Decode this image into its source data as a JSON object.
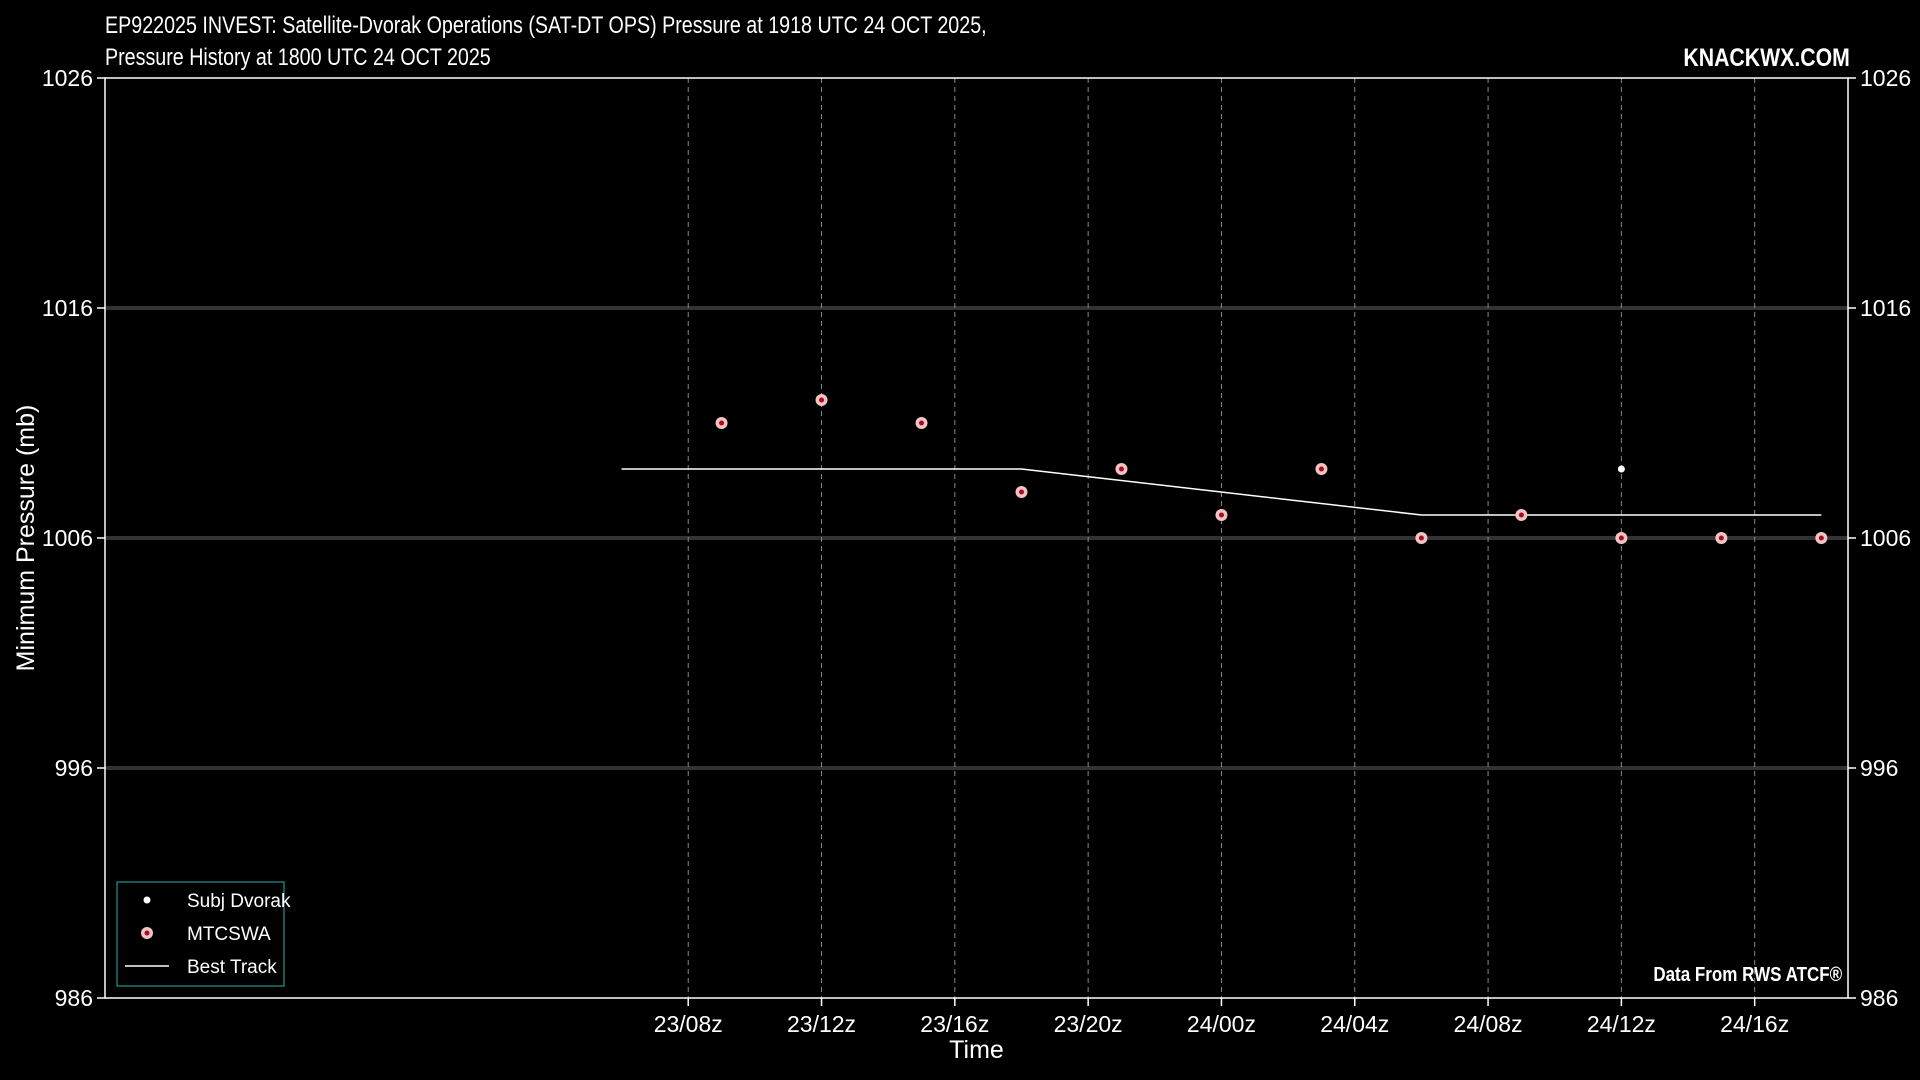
{
  "header": {
    "title_line1": "EP922025 INVEST: Satellite-Dvorak Operations (SAT-DT OPS) Pressure at 1918 UTC 24 OCT 2025,",
    "title_line2": "Pressure History at 1800 UTC 24 OCT 2025",
    "watermark": "KNACKWX.COM",
    "source": "Data From RWS ATCF®"
  },
  "colors": {
    "background": "#000000",
    "best_track": "#ffffff",
    "subj_dvorak": "#ffffff",
    "mtcswa_fill": "#f4c2c2",
    "mtcswa_center": "#a01020",
    "legend_border": "#2a8f8f",
    "hgrid": "#333333",
    "vgrid": "#888888"
  },
  "chart_data": {
    "type": "scatter",
    "xlabel": "Time",
    "ylabel": "Minimum Pressure (mb)",
    "ylim": [
      986,
      1026
    ],
    "xlim_hours": [
      -9.5,
      42.8
    ],
    "yticks": [
      986,
      996,
      1006,
      1016,
      1026
    ],
    "xticks": [
      {
        "hour": 8,
        "label": "23/08z"
      },
      {
        "hour": 12,
        "label": "23/12z"
      },
      {
        "hour": 16,
        "label": "23/16z"
      },
      {
        "hour": 20,
        "label": "23/20z"
      },
      {
        "hour": 24,
        "label": "24/00z"
      },
      {
        "hour": 28,
        "label": "24/04z"
      },
      {
        "hour": 32,
        "label": "24/08z"
      },
      {
        "hour": 36,
        "label": "24/12z"
      },
      {
        "hour": 40,
        "label": "24/16z"
      }
    ],
    "grid": "horizontal solid, vertical dashed",
    "legend_position": "lower-left",
    "series": [
      {
        "name": "Subj Dvorak",
        "kind": "point",
        "x": [
          "24/12z"
        ],
        "x_hours": [
          36
        ],
        "y": [
          1009
        ]
      },
      {
        "name": "MTCSWA",
        "kind": "point",
        "x": [
          "23/09z",
          "23/12z",
          "23/15z",
          "23/18z",
          "23/21z",
          "24/00z",
          "24/03z",
          "24/06z",
          "24/09z",
          "24/12z",
          "24/15z",
          "24/18z"
        ],
        "x_hours": [
          9,
          12,
          15,
          18,
          21,
          24,
          27,
          30,
          33,
          36,
          39,
          42
        ],
        "y": [
          1011,
          1012,
          1011,
          1008,
          1009,
          1007,
          1009,
          1006,
          1007,
          1006,
          1006,
          1006
        ]
      },
      {
        "name": "Best Track",
        "kind": "line",
        "x": [
          "23/06z",
          "23/18z",
          "24/06z",
          "24/18z"
        ],
        "x_hours": [
          6,
          18,
          30,
          42
        ],
        "y": [
          1009,
          1009,
          1007,
          1007
        ]
      }
    ]
  }
}
